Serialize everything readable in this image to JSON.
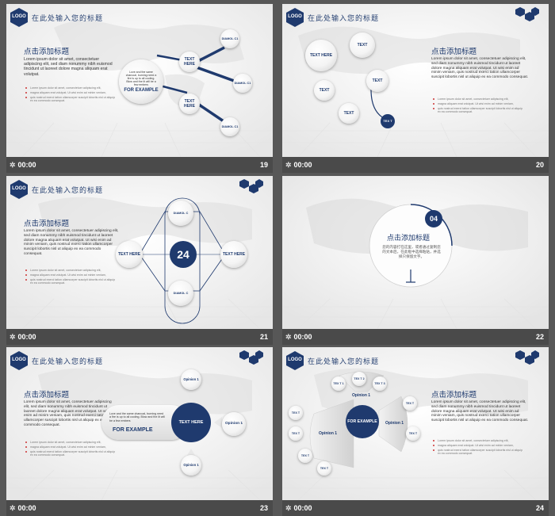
{
  "common": {
    "logo": "LOGO",
    "title": "在此处输入您的标题",
    "timer": "00:00",
    "heading": "点击添加标题",
    "body": "Lorem ipsum dolor sit amet, consectetuer adipiscing elit, sed diam nonummy nibh euismod tincidunt ut laoreet dolore magna aliquam erat volutpat.",
    "body_long": "Lorem ipsum dolor sit amet, consectetuer adipiscing elit, sed diam nonummy nibh euismod tincidunt ut laoreet dolore magna aliquam erat volutpat. Ut wisi enim ad minim veniam, quis nostrud exerci tation ullamcorper suscipit lobortis nisl ut aliquip ex ea commodo consequat.",
    "bullets": [
      "Lorem ipsum dolor sit amet, consectetuer adipiscing elit,",
      "magna aliquam erat volutpat. Ut wisi enim ad minim veniam,",
      "quis nostrud exerci tation ullamcorper suscipit lobortis nisl ut aliquip ex ea commodo consequat."
    ],
    "bullets_right": [
      "Lorem ipsum dolor sit amet, consectetuer adipiscing elit,",
      "magna aliquam erat volutpat. Ut wisi enim ad minim veniam,",
      "quis nostrud exerci tation ullamcorper suscipit lobortis nisl ut aliquip ex ea commodo consequat."
    ]
  },
  "slides": [
    {
      "number": "19",
      "example_text": "Love and the same charcoal, burning need a fire is up to all cooling. Blow and the lit will be a few embers",
      "for_example": "FOR EXAMPLE",
      "nodes": [
        "TEXT HERE",
        "TEXT HERE"
      ],
      "leaves": [
        "DIAMOL C1",
        "DIAMOL C1",
        "DIAMOL C1"
      ]
    },
    {
      "number": "20",
      "bubbles": [
        "TEXT HERE",
        "TEXT",
        "TEXT",
        "TEXT",
        "TEXT"
      ],
      "tail": "TEX T"
    },
    {
      "number": "21",
      "center": "24",
      "left": "TEXT HERE",
      "right": "TEXT HERE",
      "top": "DIAMOL C",
      "bottom": "DIAMOL C"
    },
    {
      "number": "22",
      "badge": "04",
      "heading": "点击添加标题",
      "desc": "您的内容打在这里，或者通过复制您的文本后，在此框中选择粘贴，并选择只保留文字。"
    },
    {
      "number": "23",
      "example_text": "Love and the same charcoal, burning need a fire is up to all cooling. Blow and the lit will be a few embers",
      "for_example": "FOR EXAMPLE",
      "center": "TEXT HERE",
      "opinions": [
        "Opinion 1",
        "Opinion 1",
        "Opinion 1"
      ]
    },
    {
      "number": "24",
      "center": "FOR EXAMPLE",
      "opinions": [
        "Opinion 1",
        "Opinion 1",
        "Opinion 1"
      ],
      "small": [
        "TEX T 1",
        "TEX T 2",
        "TEX T 3",
        "TEX T",
        "TEX T",
        "TEX T",
        "TEX T",
        "TEX T",
        "TEX T"
      ]
    }
  ]
}
